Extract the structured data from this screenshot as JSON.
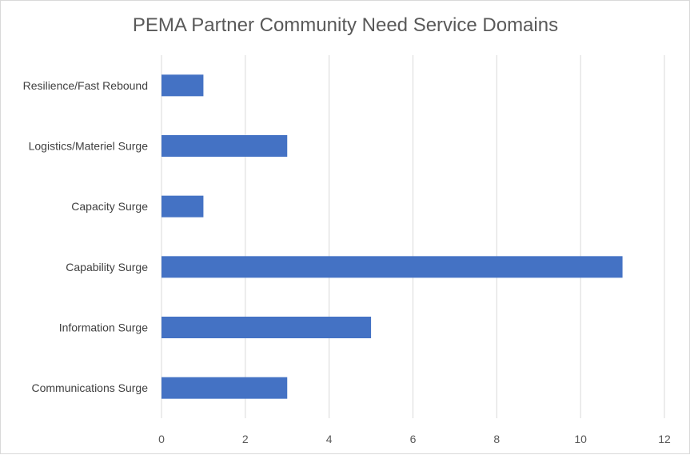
{
  "chart_data": {
    "type": "bar",
    "orientation": "horizontal",
    "title": "PEMA Partner Community Need Service Domains",
    "categories": [
      "Resilience/Fast Rebound",
      "Logistics/Materiel Surge",
      "Capacity Surge",
      "Capability Surge",
      "Information Surge",
      "Communications Surge"
    ],
    "values": [
      1,
      3,
      1,
      11,
      5,
      3
    ],
    "xlim": [
      0,
      12
    ],
    "xticks": [
      "0",
      "2",
      "4",
      "6",
      "8",
      "10",
      "12"
    ],
    "xlabel": "",
    "ylabel": "",
    "grid": "vertical",
    "legend": "none",
    "bar_color": "#4472c4"
  }
}
